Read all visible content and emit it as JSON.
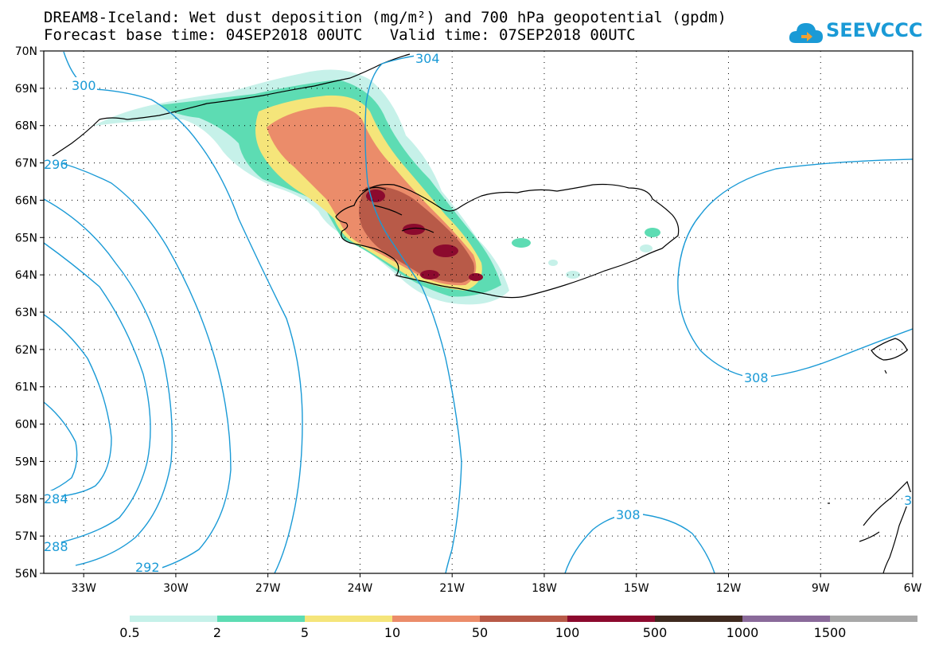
{
  "header": {
    "title_line1": "DREAM8-Iceland: Wet dust deposition (mg/m²) and 700 hPa geopotential (gpdm)",
    "forecast_label": "Forecast base time: 04SEP2018 00UTC",
    "valid_label": "Valid time: 07SEP2018 00UTC"
  },
  "logo": {
    "text": "SEEVCCC",
    "icon": "cloud-icon",
    "color": "#1a9ad6"
  },
  "map": {
    "lat_range": [
      56,
      70
    ],
    "lon_range": [
      -34.3,
      -6
    ],
    "lat_labels": [
      "70N",
      "69N",
      "68N",
      "67N",
      "66N",
      "65N",
      "64N",
      "63N",
      "62N",
      "61N",
      "60N",
      "59N",
      "58N",
      "57N",
      "56N"
    ],
    "lon_labels": [
      "33W",
      "30W",
      "27W",
      "24W",
      "21W",
      "18W",
      "15W",
      "12W",
      "9W",
      "6W"
    ],
    "contour_labels": [
      "300",
      "304",
      "308",
      "308",
      "292",
      "284",
      "288",
      "296",
      "3"
    ],
    "contour_color": "#1a9ad6"
  },
  "colorbar": {
    "thresholds": [
      "0.5",
      "2",
      "5",
      "10",
      "50",
      "100",
      "500",
      "1000",
      "1500"
    ],
    "colors": [
      "#c6f1e9",
      "#5ddcb3",
      "#f5e57a",
      "#eb8c6a",
      "#b85a48",
      "#8c0a2e",
      "#3f2a1f",
      "#8a6a9a",
      "#a8a8a8"
    ]
  }
}
